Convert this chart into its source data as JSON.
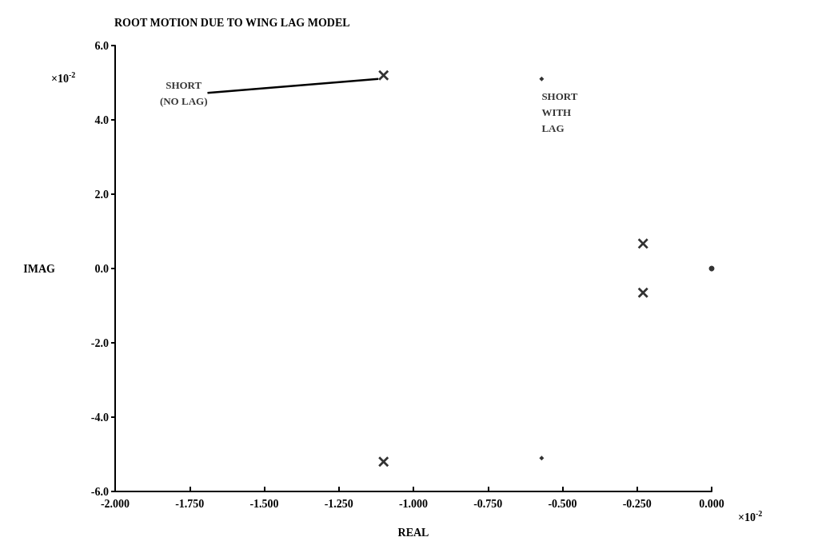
{
  "chart_data": {
    "type": "scatter",
    "title": "ROOT MOTION DUE TO WING LAG MODEL",
    "xlabel": "REAL",
    "ylabel": "IMAG",
    "series": [
      {
        "color": "#000000",
        "marker": "cross",
        "x": [
          -1.1,
          -1.1,
          -0.23,
          -0.23
        ],
        "values": [
          5.2,
          -5.2,
          0.67,
          -0.65
        ]
      },
      {
        "color": "#000000",
        "marker": "diamond",
        "x": [
          -0.57,
          -0.57
        ],
        "values": [
          5.1,
          -5.1
        ]
      },
      {
        "color": "#000000",
        "marker": "circle",
        "x": [
          0.0
        ],
        "values": [
          0.0
        ]
      }
    ],
    "xlim": [
      -2,
      0
    ],
    "xticks": [
      {
        "value": -2,
        "label": "-2.000"
      },
      {
        "value": -1.75,
        "label": "-1.750"
      },
      {
        "value": -1.5,
        "label": "-1.500"
      },
      {
        "value": -1.25,
        "label": "-1.250"
      },
      {
        "value": -1,
        "label": "-1.000"
      },
      {
        "value": -0.75,
        "label": "-0.750"
      },
      {
        "value": -0.5,
        "label": "-0.500"
      },
      {
        "value": -0.25,
        "label": "-0.250"
      },
      {
        "value": 0,
        "label": "0.000"
      }
    ],
    "ylim": [
      -6,
      6
    ],
    "yticks": [
      {
        "value": -6,
        "label": "-6.0"
      },
      {
        "value": -4,
        "label": "-4.0"
      },
      {
        "value": -2,
        "label": "-2.0"
      },
      {
        "value": 0,
        "label": "0.0"
      },
      {
        "value": 2,
        "label": "2.0"
      },
      {
        "value": 4,
        "label": "4.0"
      },
      {
        "value": 6,
        "label": "6.0"
      }
    ],
    "annotations": [
      {
        "text": "SHORT\n(NO LAG)",
        "x": -1.1,
        "y": 5.2
      },
      {
        "text": "SHORT\nWITH\nLAG",
        "x": -0.57,
        "y": 5.1
      },
      "×10$^{-2}$",
      "×10$^{-2}$"
    ],
    "grid": false
  }
}
